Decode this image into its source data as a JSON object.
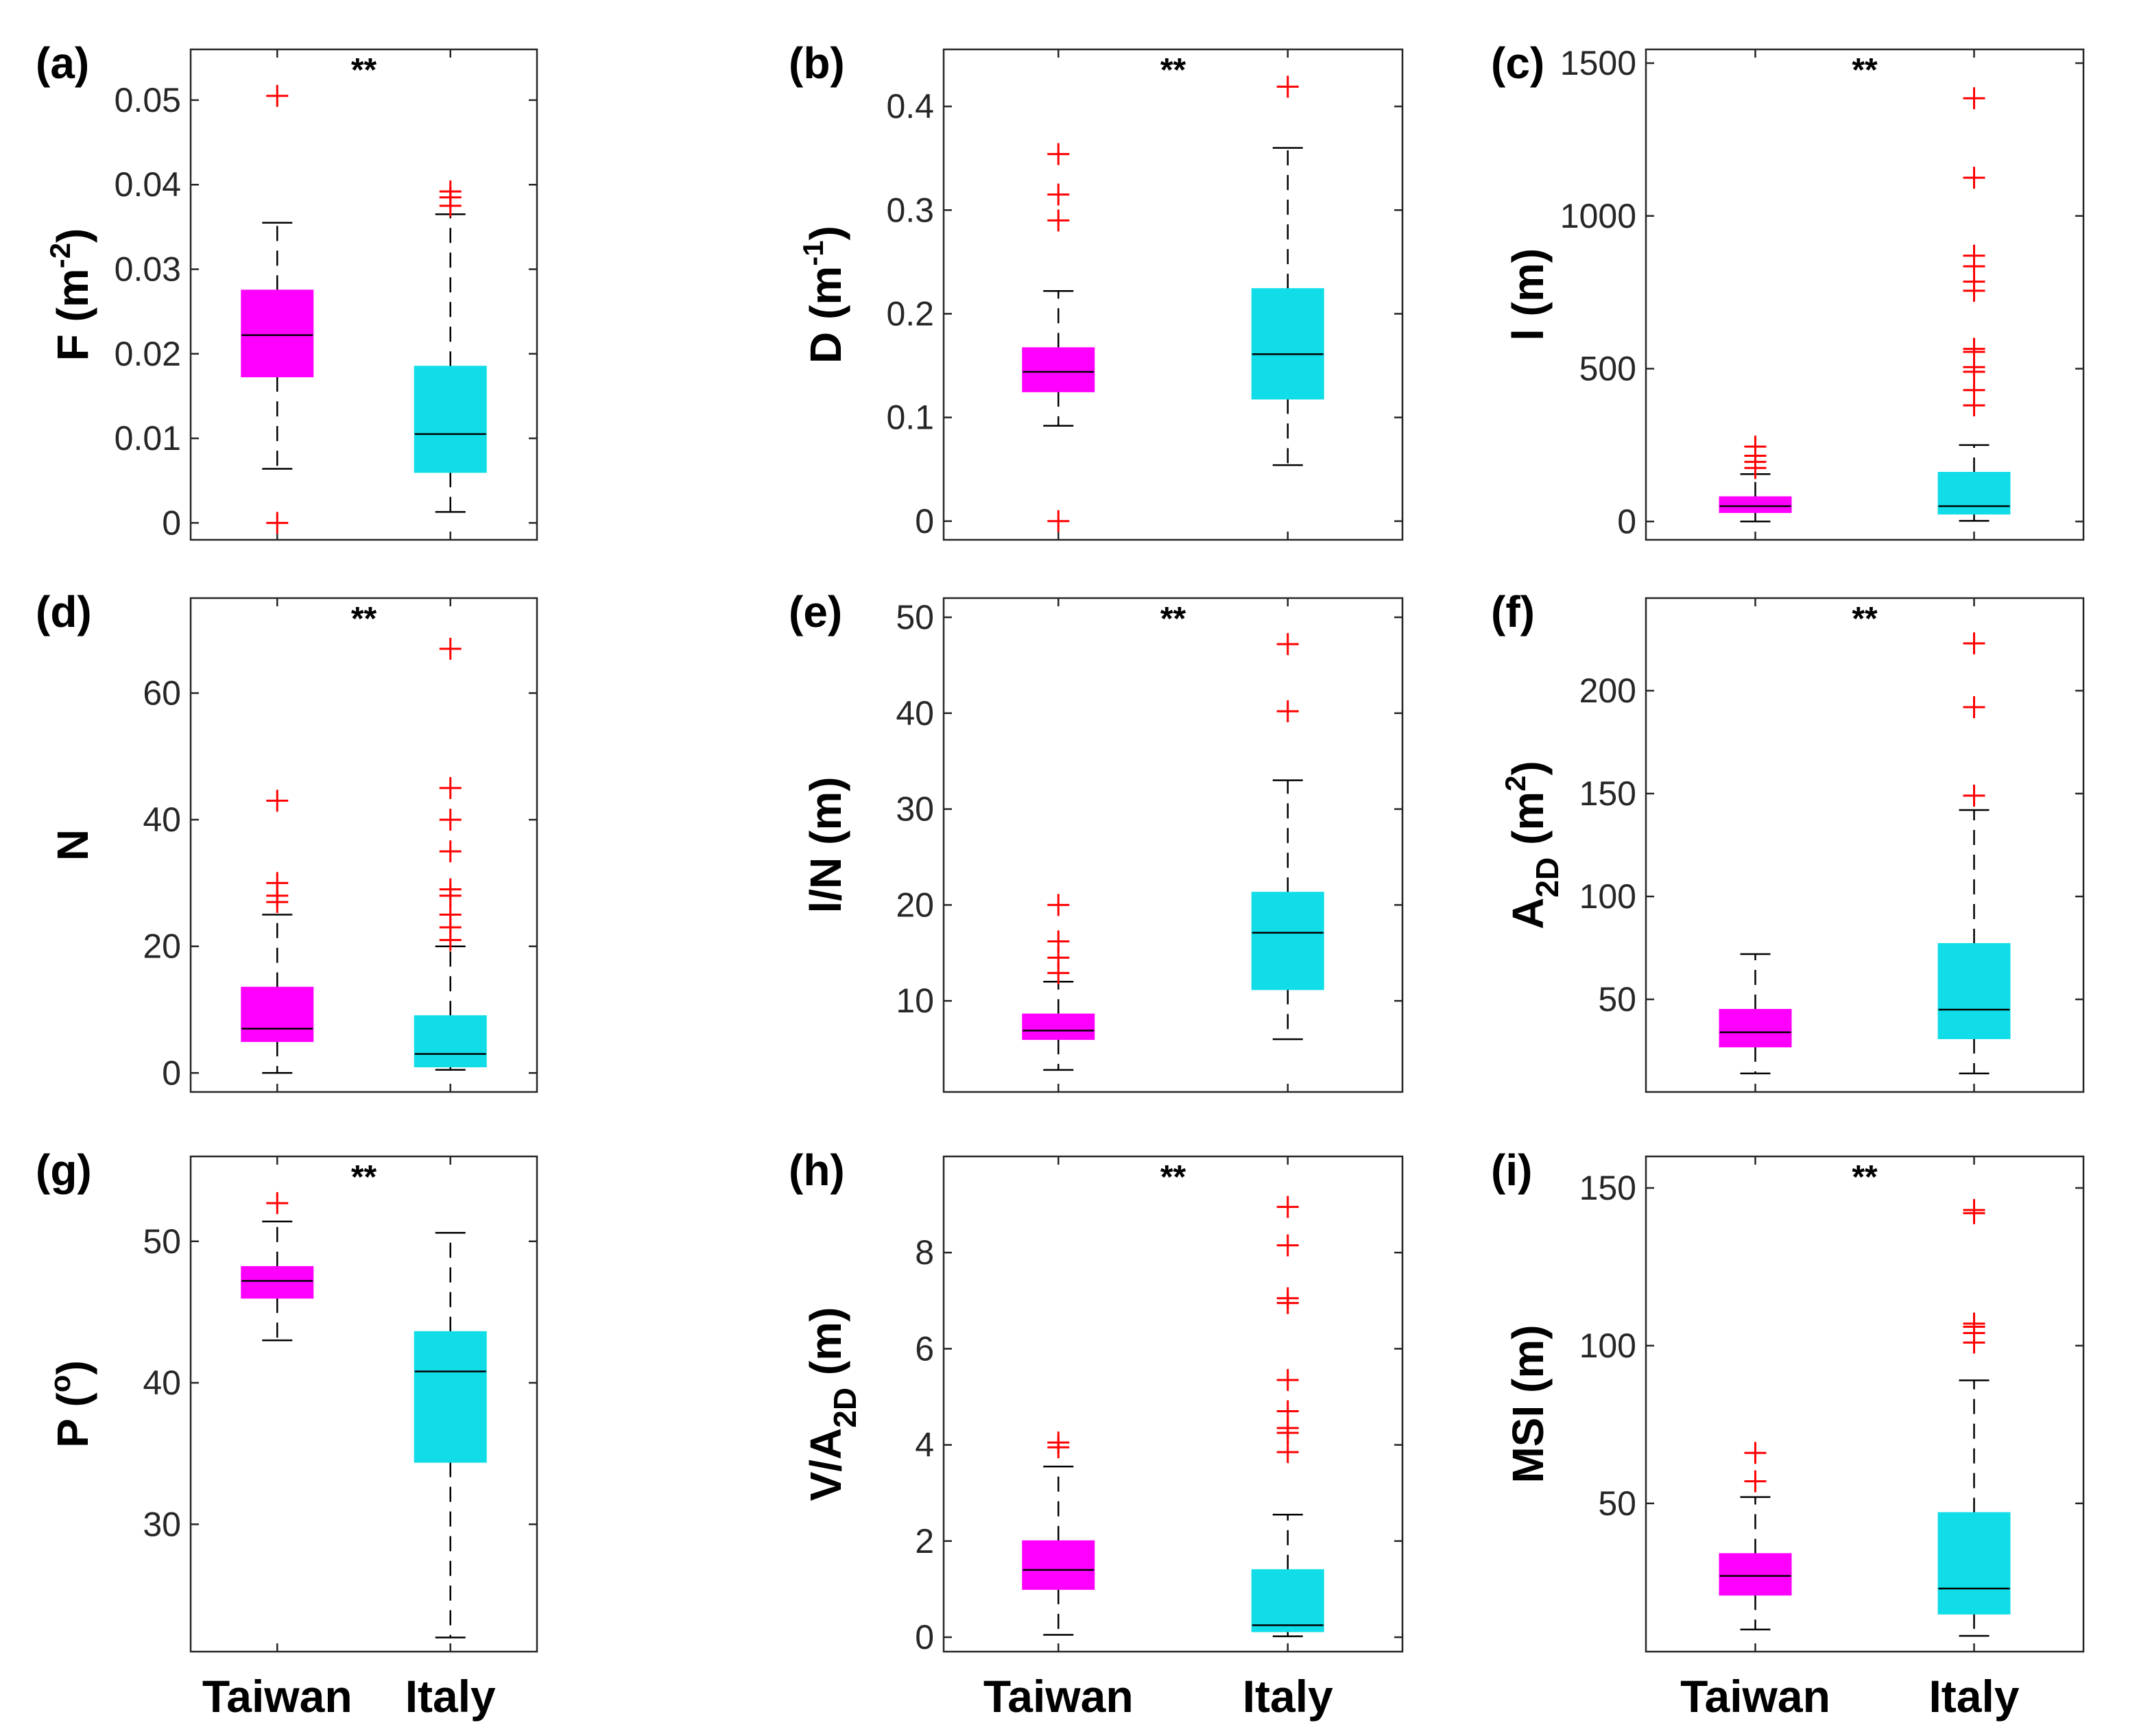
{
  "chart_data": [
    {
      "type": "box",
      "panel": "(a)",
      "ylabel": "F (m",
      "ylabel_sup": "-2",
      "ylabel_tail": ")",
      "significance": "**",
      "ylim": [
        -0.002,
        0.056
      ],
      "yticks": [
        0,
        0.01,
        0.02,
        0.03,
        0.04,
        0.05
      ],
      "ytick_labels": [
        "0",
        "0.01",
        "0.02",
        "0.03",
        "0.04",
        "0.05"
      ],
      "categories": [
        "Taiwan",
        "Italy"
      ],
      "series": [
        {
          "name": "Taiwan",
          "color": "#ff00ff",
          "q1": 0.0173,
          "median": 0.0222,
          "q3": 0.0275,
          "whisker_low": 0.0064,
          "whisker_high": 0.0355,
          "outliers": [
            0.0505,
            0.0
          ]
        },
        {
          "name": "Italy",
          "color": "#11dde8",
          "q1": 0.006,
          "median": 0.0105,
          "q3": 0.0185,
          "whisker_low": 0.0013,
          "whisker_high": 0.0365,
          "outliers": [
            0.0385,
            0.0392,
            0.0375
          ]
        }
      ]
    },
    {
      "type": "box",
      "panel": "(b)",
      "ylabel": "D (m",
      "ylabel_sup": "-1",
      "ylabel_tail": ")",
      "significance": "**",
      "ylim": [
        -0.018,
        0.455
      ],
      "yticks": [
        0,
        0.1,
        0.2,
        0.3,
        0.4
      ],
      "ytick_labels": [
        "0",
        "0.1",
        "0.2",
        "0.3",
        "0.4"
      ],
      "categories": [
        "Taiwan",
        "Italy"
      ],
      "series": [
        {
          "name": "Taiwan",
          "color": "#ff00ff",
          "q1": 0.125,
          "median": 0.144,
          "q3": 0.167,
          "whisker_low": 0.092,
          "whisker_high": 0.222,
          "outliers": [
            0.354,
            0.315,
            0.29,
            0.0
          ]
        },
        {
          "name": "Italy",
          "color": "#11dde8",
          "q1": 0.118,
          "median": 0.161,
          "q3": 0.224,
          "whisker_low": 0.054,
          "whisker_high": 0.36,
          "outliers": [
            0.419
          ]
        }
      ]
    },
    {
      "type": "box",
      "panel": "(c)",
      "ylabel": "l (m)",
      "significance": "**",
      "ylim": [
        -60,
        1545
      ],
      "yticks": [
        0,
        500,
        1000,
        1500
      ],
      "ytick_labels": [
        "0",
        "500",
        "1000",
        "1500"
      ],
      "categories": [
        "Taiwan",
        "Italy"
      ],
      "series": [
        {
          "name": "Taiwan",
          "color": "#ff00ff",
          "q1": 30,
          "median": 50,
          "q3": 80,
          "whisker_low": 0,
          "whisker_high": 155,
          "outliers": [
            175,
            195,
            215,
            245
          ]
        },
        {
          "name": "Italy",
          "color": "#11dde8",
          "q1": 25,
          "median": 50,
          "q3": 160,
          "whisker_low": 2,
          "whisker_high": 250,
          "outliers": [
            1385,
            1125,
            870,
            835,
            785,
            755,
            565,
            555,
            505,
            490,
            430,
            380
          ]
        }
      ]
    },
    {
      "type": "box",
      "panel": "(d)",
      "ylabel": "N",
      "significance": "**",
      "ylim": [
        -3,
        75
      ],
      "yticks": [
        0,
        20,
        40,
        60
      ],
      "ytick_labels": [
        "0",
        "20",
        "40",
        "60"
      ],
      "categories": [
        "Taiwan",
        "Italy"
      ],
      "series": [
        {
          "name": "Taiwan",
          "color": "#ff00ff",
          "q1": 5,
          "median": 7,
          "q3": 13.5,
          "whisker_low": 0,
          "whisker_high": 25,
          "outliers": [
            43,
            30,
            28,
            27
          ]
        },
        {
          "name": "Italy",
          "color": "#11dde8",
          "q1": 1,
          "median": 3,
          "q3": 9,
          "whisker_low": 0.5,
          "whisker_high": 20,
          "outliers": [
            67,
            45,
            40,
            35,
            29,
            28,
            25,
            23,
            21
          ]
        }
      ]
    },
    {
      "type": "box",
      "panel": "(e)",
      "ylabel": "l/N (m)",
      "significance": "**",
      "ylim": [
        0.5,
        52
      ],
      "yticks": [
        10,
        20,
        30,
        40,
        50
      ],
      "ytick_labels": [
        "10",
        "20",
        "30",
        "40",
        "50"
      ],
      "categories": [
        "Taiwan",
        "Italy"
      ],
      "series": [
        {
          "name": "Taiwan",
          "color": "#ff00ff",
          "q1": 6,
          "median": 6.9,
          "q3": 8.6,
          "whisker_low": 2.8,
          "whisker_high": 12,
          "outliers": [
            20,
            16.2,
            14.5,
            12.9
          ]
        },
        {
          "name": "Italy",
          "color": "#11dde8",
          "q1": 11.2,
          "median": 17.1,
          "q3": 21.3,
          "whisker_low": 6,
          "whisker_high": 33,
          "outliers": [
            47.2,
            40.2
          ]
        }
      ]
    },
    {
      "type": "box",
      "panel": "(f)",
      "ylabel": "A",
      "ylabel_sub": "2D",
      "ylabel_tail": " (m",
      "ylabel_sup": "2",
      "ylabel_end": ")",
      "significance": "**",
      "ylim": [
        5,
        245
      ],
      "yticks": [
        50,
        100,
        150,
        200
      ],
      "ytick_labels": [
        "50",
        "100",
        "150",
        "200"
      ],
      "categories": [
        "Taiwan",
        "Italy"
      ],
      "series": [
        {
          "name": "Taiwan",
          "color": "#ff00ff",
          "q1": 27,
          "median": 34,
          "q3": 45,
          "whisker_low": 14,
          "whisker_high": 72,
          "outliers": []
        },
        {
          "name": "Italy",
          "color": "#11dde8",
          "q1": 31,
          "median": 45,
          "q3": 77,
          "whisker_low": 14,
          "whisker_high": 142,
          "outliers": [
            223,
            192,
            149
          ]
        }
      ]
    },
    {
      "type": "box",
      "panel": "(g)",
      "ylabel": "P (",
      "ylabel_sup": "o",
      "ylabel_tail": ")",
      "significance": "**",
      "ylim": [
        21,
        56
      ],
      "yticks": [
        30,
        40,
        50
      ],
      "ytick_labels": [
        "30",
        "40",
        "50"
      ],
      "categories": [
        "Taiwan",
        "Italy"
      ],
      "series": [
        {
          "name": "Taiwan",
          "color": "#ff00ff",
          "q1": 46,
          "median": 47.2,
          "q3": 48.2,
          "whisker_low": 43,
          "whisker_high": 51.4,
          "outliers": [
            52.7
          ]
        },
        {
          "name": "Italy",
          "color": "#11dde8",
          "q1": 34.4,
          "median": 40.8,
          "q3": 43.6,
          "whisker_low": 22,
          "whisker_high": 50.6,
          "outliers": []
        }
      ]
    },
    {
      "type": "box",
      "panel": "(h)",
      "ylabel": "V/A",
      "ylabel_sub": "2D",
      "ylabel_tail": " (m)",
      "significance": "**",
      "ylim": [
        -0.3,
        10
      ],
      "yticks": [
        0,
        2,
        4,
        6,
        8
      ],
      "ytick_labels": [
        "0",
        "2",
        "4",
        "6",
        "8"
      ],
      "categories": [
        "Taiwan",
        "Italy"
      ],
      "series": [
        {
          "name": "Taiwan",
          "color": "#ff00ff",
          "q1": 1.0,
          "median": 1.4,
          "q3": 2.0,
          "whisker_low": 0.05,
          "whisker_high": 3.55,
          "outliers": [
            4.05,
            3.95
          ]
        },
        {
          "name": "Italy",
          "color": "#11dde8",
          "q1": 0.12,
          "median": 0.25,
          "q3": 1.4,
          "whisker_low": 0.02,
          "whisker_high": 2.55,
          "outliers": [
            8.95,
            8.15,
            7.05,
            6.95,
            5.35,
            4.7,
            4.35,
            4.25,
            3.85
          ]
        }
      ]
    },
    {
      "type": "box",
      "panel": "(i)",
      "ylabel": "MSI (m)",
      "significance": "**",
      "ylim": [
        3,
        160
      ],
      "yticks": [
        50,
        100,
        150
      ],
      "ytick_labels": [
        "50",
        "100",
        "150"
      ],
      "categories": [
        "Taiwan",
        "Italy"
      ],
      "series": [
        {
          "name": "Taiwan",
          "color": "#ff00ff",
          "q1": 21,
          "median": 27,
          "q3": 34,
          "whisker_low": 10,
          "whisker_high": 52,
          "outliers": [
            66,
            57
          ]
        },
        {
          "name": "Italy",
          "color": "#11dde8",
          "q1": 15,
          "median": 23,
          "q3": 47,
          "whisker_low": 8,
          "whisker_high": 89,
          "outliers": [
            143,
            142,
            107,
            106,
            104,
            101
          ]
        }
      ]
    }
  ],
  "x_axis": {
    "labels": [
      "Taiwan",
      "Italy"
    ]
  }
}
